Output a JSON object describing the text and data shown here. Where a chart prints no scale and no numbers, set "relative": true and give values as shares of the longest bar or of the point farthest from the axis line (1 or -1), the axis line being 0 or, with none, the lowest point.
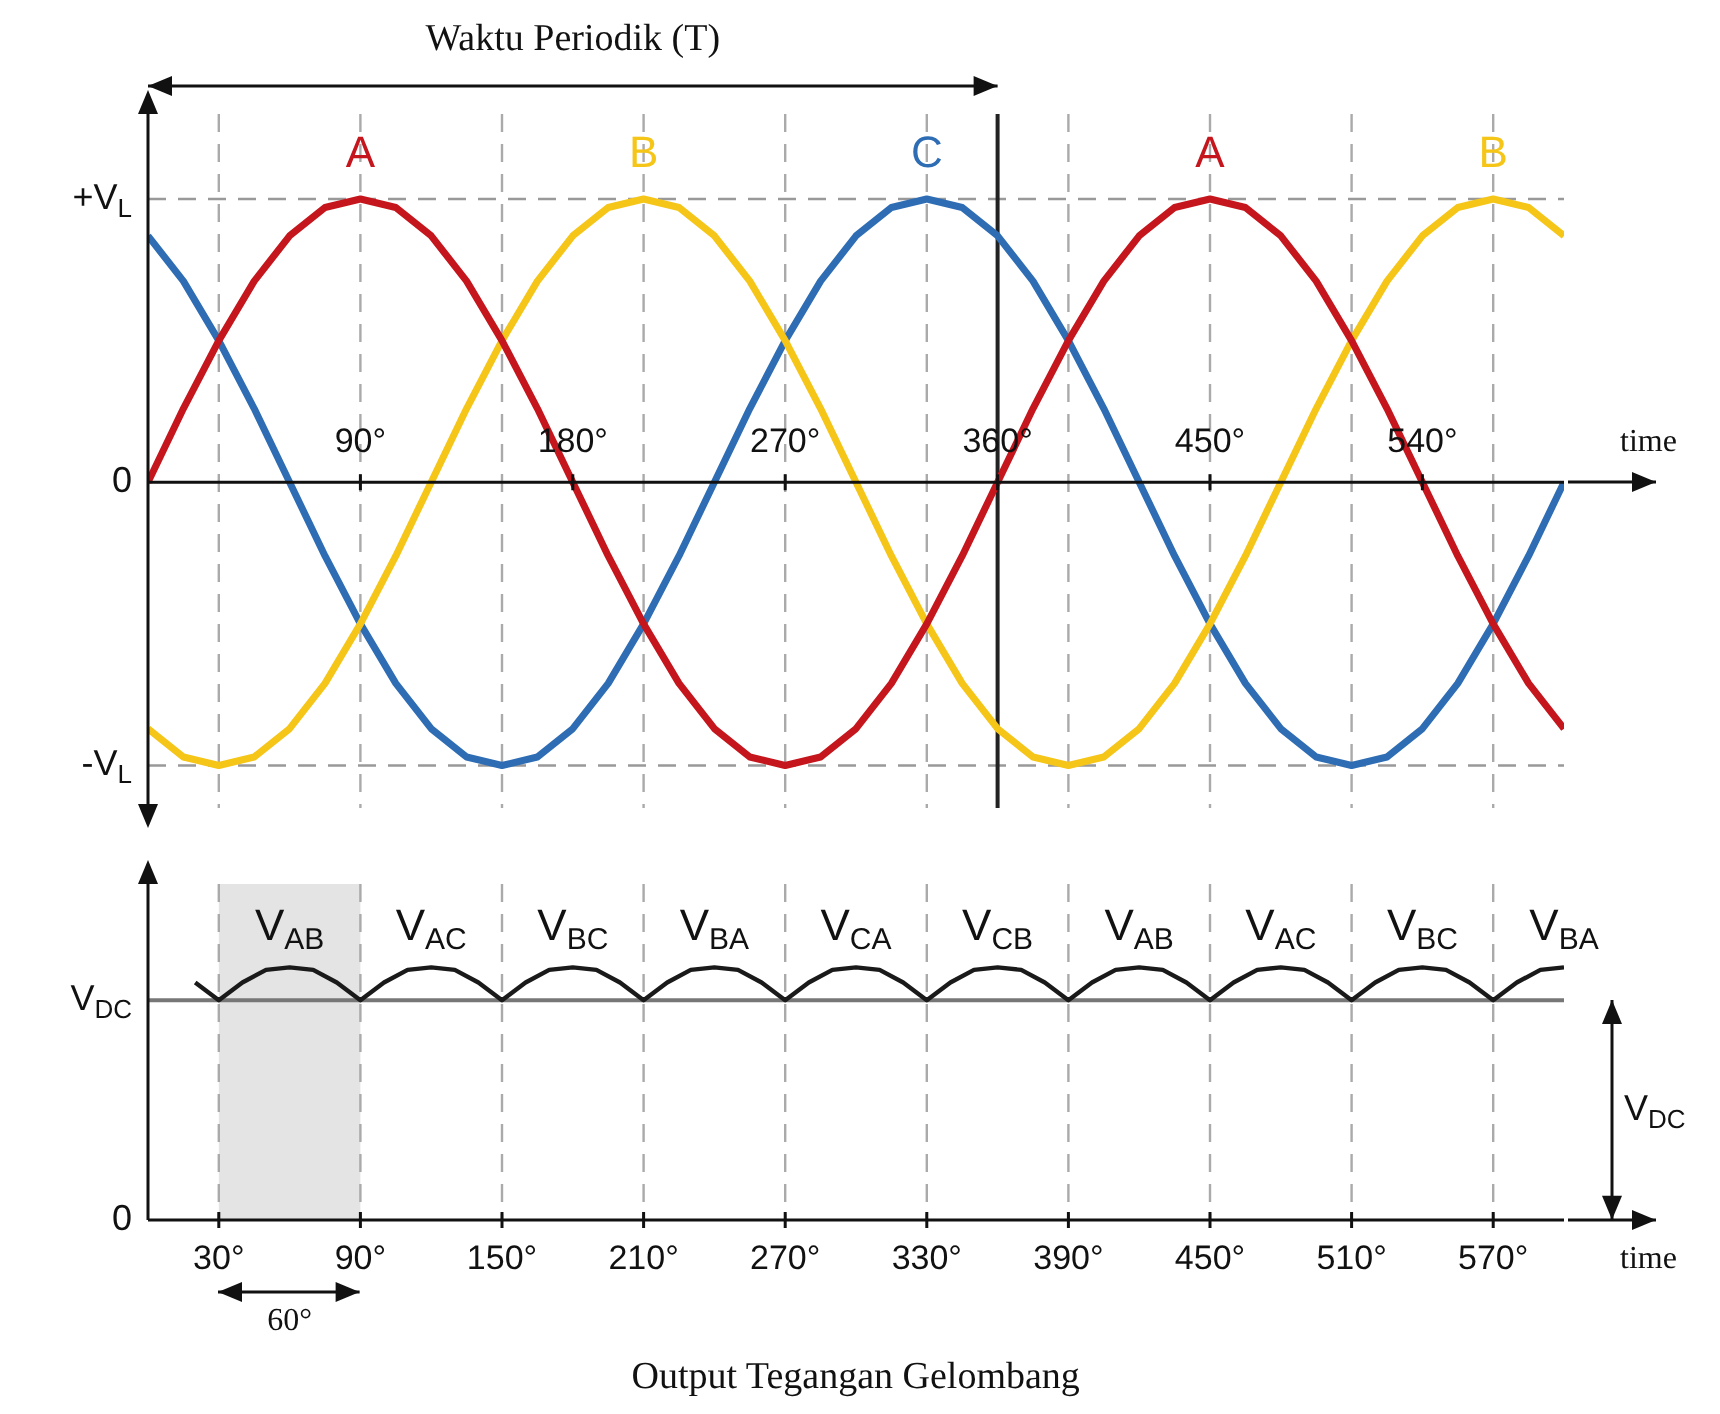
{
  "chart_data": [
    {
      "type": "line",
      "title": "Waktu Periodik (T)",
      "xlabel": "time",
      "marker": "none",
      "relative": true,
      "x": [
        0,
        15,
        30,
        45,
        60,
        75,
        90,
        105,
        120,
        135,
        150,
        165,
        180,
        195,
        210,
        225,
        240,
        255,
        270,
        285,
        300,
        315,
        330,
        345,
        360,
        375,
        390,
        405,
        420,
        435,
        450,
        465,
        480,
        495,
        510,
        525,
        540,
        555,
        570,
        585,
        600
      ],
      "xlim": [
        0,
        600
      ],
      "xticks": [
        {
          "value": 90,
          "label": "90°"
        },
        {
          "value": 180,
          "label": "180°"
        },
        {
          "value": 270,
          "label": "270°"
        },
        {
          "value": 360,
          "label": "360°"
        },
        {
          "value": 450,
          "label": "450°"
        },
        {
          "value": 540,
          "label": "540°"
        }
      ],
      "series": [
        {
          "color": "#c4161c",
          "values": [
            0,
            0.26,
            0.5,
            0.71,
            0.87,
            0.97,
            1,
            0.97,
            0.87,
            0.71,
            0.5,
            0.26,
            0,
            -0.26,
            -0.5,
            -0.71,
            -0.87,
            -0.97,
            -1,
            -0.97,
            -0.87,
            -0.71,
            -0.5,
            -0.26,
            0,
            0.26,
            0.5,
            0.71,
            0.87,
            0.97,
            1,
            0.97,
            0.87,
            0.71,
            0.5,
            0.26,
            0,
            -0.26,
            -0.5,
            -0.71,
            -0.87
          ]
        },
        {
          "color": "#f5c518",
          "values": [
            -0.87,
            -0.97,
            -1,
            -0.97,
            -0.87,
            -0.71,
            -0.5,
            -0.26,
            0,
            0.26,
            0.5,
            0.71,
            0.87,
            0.97,
            1,
            0.97,
            0.87,
            0.71,
            0.5,
            0.26,
            0,
            -0.26,
            -0.5,
            -0.71,
            -0.87,
            -0.97,
            -1,
            -0.97,
            -0.87,
            -0.71,
            -0.5,
            -0.26,
            0,
            0.26,
            0.5,
            0.71,
            0.87,
            0.97,
            1,
            0.97,
            0.87
          ]
        },
        {
          "color": "#2e6db4",
          "values": [
            0.87,
            0.71,
            0.5,
            0.26,
            0,
            -0.26,
            -0.5,
            -0.71,
            -0.87,
            -0.97,
            -1,
            -0.97,
            -0.87,
            -0.71,
            -0.5,
            -0.26,
            0,
            0.26,
            0.5,
            0.71,
            0.87,
            0.97,
            1,
            0.97,
            0.87,
            0.71,
            0.5,
            0.26,
            0,
            -0.26,
            -0.5,
            -0.71,
            -0.87,
            -0.97,
            -1,
            -0.97,
            -0.87,
            -0.71,
            -0.5,
            -0.26,
            0
          ]
        }
      ],
      "ref_lines": [
        {
          "axis": "y",
          "value": 1,
          "label": "+V$_{L}$",
          "line_style": "dashed",
          "color": "#999999"
        },
        {
          "axis": "y",
          "value": -1,
          "label": "-V$_{L}$",
          "line_style": "dashed",
          "color": "#999999"
        },
        {
          "axis": "x",
          "value": 30,
          "line_style": "dashed",
          "color": "#aaaaaa"
        },
        {
          "axis": "x",
          "value": 90,
          "line_style": "dashed",
          "color": "#aaaaaa"
        },
        {
          "axis": "x",
          "value": 150,
          "line_style": "dashed",
          "color": "#aaaaaa"
        },
        {
          "axis": "x",
          "value": 210,
          "line_style": "dashed",
          "color": "#aaaaaa"
        },
        {
          "axis": "x",
          "value": 270,
          "line_style": "dashed",
          "color": "#aaaaaa"
        },
        {
          "axis": "x",
          "value": 330,
          "line_style": "dashed",
          "color": "#aaaaaa"
        },
        {
          "axis": "x",
          "value": 390,
          "line_style": "dashed",
          "color": "#aaaaaa"
        },
        {
          "axis": "x",
          "value": 450,
          "line_style": "dashed",
          "color": "#aaaaaa"
        },
        {
          "axis": "x",
          "value": 510,
          "line_style": "dashed",
          "color": "#aaaaaa"
        },
        {
          "axis": "x",
          "value": 570,
          "line_style": "dashed",
          "color": "#aaaaaa"
        },
        {
          "axis": "x",
          "value": 360,
          "line_style": "solid",
          "color": "#222222"
        }
      ],
      "annotations": [
        {
          "text": "0",
          "x": 0,
          "y": 0
        },
        {
          "text": "A",
          "x": 90,
          "y": 1
        },
        {
          "text": "B",
          "x": 210,
          "y": 1
        },
        {
          "text": "C",
          "x": 330,
          "y": 1
        },
        {
          "text": "A",
          "x": 450,
          "y": 1
        },
        {
          "text": "B",
          "x": 570,
          "y": 1
        }
      ]
    },
    {
      "type": "line",
      "title": "Output Tegangan Gelombang",
      "xlabel": "time",
      "marker": "none",
      "relative": true,
      "xlim": [
        0,
        600
      ],
      "xticks": [
        {
          "value": 30,
          "label": "30°"
        },
        {
          "value": 90,
          "label": "90°"
        },
        {
          "value": 150,
          "label": "150°"
        },
        {
          "value": 210,
          "label": "210°"
        },
        {
          "value": 270,
          "label": "270°"
        },
        {
          "value": 330,
          "label": "330°"
        },
        {
          "value": 390,
          "label": "390°"
        },
        {
          "value": 450,
          "label": "450°"
        },
        {
          "value": 510,
          "label": "510°"
        },
        {
          "value": 570,
          "label": "570°"
        }
      ],
      "series": [
        {
          "color": "#1a1a1a",
          "x": [
            20,
            30,
            40,
            50,
            60,
            70,
            80,
            90,
            100,
            110,
            120,
            130,
            140,
            150,
            160,
            170,
            180,
            190,
            200,
            210,
            220,
            230,
            240,
            250,
            260,
            270,
            280,
            290,
            300,
            310,
            320,
            330,
            340,
            350,
            360,
            370,
            380,
            390,
            400,
            410,
            420,
            430,
            440,
            450,
            460,
            470,
            480,
            490,
            500,
            510,
            520,
            530,
            540,
            550,
            560,
            570,
            580,
            590,
            600
          ],
          "values": [
            0.94,
            0.87,
            0.94,
            0.99,
            1,
            0.99,
            0.94,
            0.87,
            0.94,
            0.99,
            1,
            0.99,
            0.94,
            0.87,
            0.94,
            0.99,
            1,
            0.99,
            0.94,
            0.87,
            0.94,
            0.99,
            1,
            0.99,
            0.94,
            0.87,
            0.94,
            0.99,
            1,
            0.99,
            0.94,
            0.87,
            0.94,
            0.99,
            1,
            0.99,
            0.94,
            0.87,
            0.94,
            0.99,
            1,
            0.99,
            0.94,
            0.87,
            0.94,
            0.99,
            1,
            0.99,
            0.94,
            0.87,
            0.94,
            0.99,
            1,
            0.99,
            0.94,
            0.87,
            0.94,
            0.99,
            1
          ]
        }
      ],
      "ref_lines": [
        {
          "axis": "y",
          "value": 0.87,
          "label": "V$_{DC}$",
          "line_style": "solid",
          "color": "#777777"
        },
        {
          "axis": "x",
          "value": 30,
          "line_style": "dashed",
          "color": "#aaaaaa"
        },
        {
          "axis": "x",
          "value": 90,
          "line_style": "dashed",
          "color": "#aaaaaa"
        },
        {
          "axis": "x",
          "value": 150,
          "line_style": "dashed",
          "color": "#aaaaaa"
        },
        {
          "axis": "x",
          "value": 210,
          "line_style": "dashed",
          "color": "#aaaaaa"
        },
        {
          "axis": "x",
          "value": 270,
          "line_style": "dashed",
          "color": "#aaaaaa"
        },
        {
          "axis": "x",
          "value": 330,
          "line_style": "dashed",
          "color": "#aaaaaa"
        },
        {
          "axis": "x",
          "value": 390,
          "line_style": "dashed",
          "color": "#aaaaaa"
        },
        {
          "axis": "x",
          "value": 450,
          "line_style": "dashed",
          "color": "#aaaaaa"
        },
        {
          "axis": "x",
          "value": 510,
          "line_style": "dashed",
          "color": "#aaaaaa"
        },
        {
          "axis": "x",
          "value": 570,
          "line_style": "dashed",
          "color": "#aaaaaa"
        }
      ],
      "bands": [
        {
          "axis": "x",
          "from": 30,
          "to": 90,
          "color": "#e4e4e4",
          "label": "60°"
        }
      ],
      "annotations": [
        "0",
        "V$_{AB}$",
        "V$_{AC}$",
        "V$_{BC}$",
        "V$_{BA}$",
        "V$_{CA}$",
        "V$_{CB}$",
        "V$_{AB}$",
        "V$_{AC}$",
        "V$_{BC}$",
        "V$_{BA}$",
        {
          "text": "V$_{DC}$",
          "x": 600,
          "y": 0.87
        }
      ]
    }
  ]
}
